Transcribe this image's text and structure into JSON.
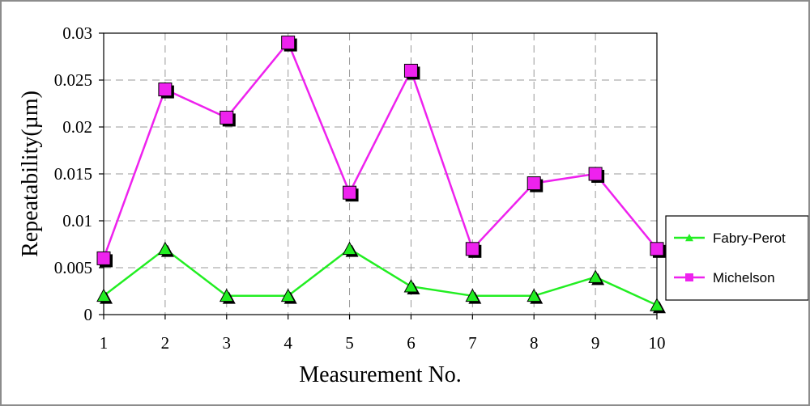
{
  "colors": {
    "fabry_perot": "#22ee22",
    "michelson": "#ee22ee",
    "grid": "#999999",
    "axis": "#000000"
  },
  "chart_data": {
    "type": "line",
    "title": "",
    "xlabel": "Measurement No.",
    "ylabel": "Repeatability(µm)",
    "x": [
      1,
      2,
      3,
      4,
      5,
      6,
      7,
      8,
      9,
      10
    ],
    "x_tick_labels": [
      "1",
      "2",
      "3",
      "4",
      "5",
      "6",
      "7",
      "8",
      "9",
      "10"
    ],
    "y_tick_labels": [
      "0",
      "0.005",
      "0.01",
      "0.015",
      "0.02",
      "0.025",
      "0.03"
    ],
    "ylim": [
      0,
      0.03
    ],
    "grid": true,
    "legend_position": "right",
    "series": [
      {
        "name": "Fabry-Perot",
        "marker": "triangle",
        "color": "#22ee22",
        "values": [
          0.002,
          0.007,
          0.002,
          0.002,
          0.007,
          0.003,
          0.002,
          0.002,
          0.004,
          0.001
        ]
      },
      {
        "name": "Michelson",
        "marker": "square",
        "color": "#ee22ee",
        "values": [
          0.006,
          0.024,
          0.021,
          0.029,
          0.013,
          0.026,
          0.007,
          0.014,
          0.015,
          0.007
        ]
      }
    ]
  }
}
